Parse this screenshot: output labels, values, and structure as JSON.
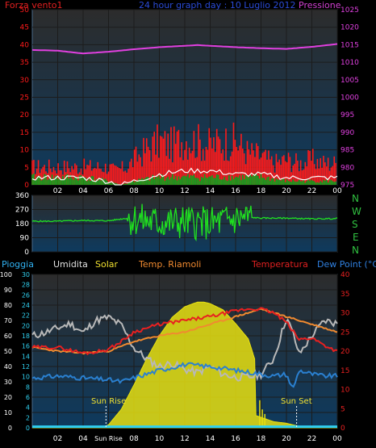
{
  "header": {
    "wind_label": "Forza vento1",
    "title": "24 hour graph day : 10 Luglio 2012",
    "pressure_label": "Pressione"
  },
  "direction": {
    "compass": [
      "N",
      "W",
      "S",
      "E",
      "N"
    ]
  },
  "climate": {
    "legend": {
      "rain": "Pioggia",
      "humidity": "Umidita",
      "solar": "Solar",
      "radiator": "Temp. Riamoli",
      "temperature": "Temperatura",
      "dewpoint": "Dew Point (°C)"
    },
    "sunrise_label": "Sun Rise",
    "sunset_label": "Sun Set"
  },
  "colors": {
    "wind_gust": "#ff1a1a",
    "wind_avg": "#ffffff",
    "wind_speed": "#1aa01a",
    "pressure": "#e040e0",
    "direction": "#20e020",
    "humidity": "#b8b8b8",
    "solar": "#e8e010",
    "radiator": "#f08a30",
    "temperature": "#e82020",
    "dewpoint": "#2a80d0",
    "rain": "#30d0f0",
    "axis_text": "#ffffff"
  },
  "chart_data": [
    {
      "type": "line",
      "panel": "wind_pressure",
      "x_ticks": [
        "02",
        "04",
        "06",
        "08",
        "10",
        "12",
        "14",
        "16",
        "18",
        "20",
        "22",
        "00"
      ],
      "y_left": {
        "range": [
          0,
          50
        ],
        "ticks": [
          0,
          5,
          10,
          15,
          20,
          25,
          30,
          35,
          40,
          45,
          50
        ]
      },
      "y_right": {
        "range": [
          975,
          1025
        ],
        "ticks": [
          975,
          980,
          985,
          990,
          995,
          1000,
          1005,
          1010,
          1015,
          1020,
          1025
        ]
      },
      "series": [
        {
          "name": "Pressione",
          "axis": "right",
          "x": [
            0,
            2,
            4,
            6,
            8,
            10,
            12,
            13,
            14,
            16,
            18,
            20,
            22,
            24
          ],
          "values": [
            1013.5,
            1013.3,
            1012.5,
            1013.0,
            1013.7,
            1014.3,
            1014.7,
            1014.9,
            1014.7,
            1014.3,
            1014.0,
            1013.8,
            1014.4,
            1015.2
          ]
        },
        {
          "name": "Forza vento1",
          "axis": "left",
          "style": "gust",
          "x": [
            0,
            2,
            4,
            6,
            6.5,
            7.5,
            8,
            9,
            10,
            11,
            12,
            13,
            14,
            15,
            16,
            17,
            18,
            19,
            20,
            21,
            22,
            23,
            24
          ],
          "values": [
            5,
            5,
            5,
            5,
            4,
            5,
            7,
            10,
            12,
            11,
            13,
            12,
            11,
            12,
            12,
            9,
            8,
            6,
            7,
            6,
            7,
            6,
            6
          ]
        },
        {
          "x": [
            0,
            2,
            4,
            6,
            7,
            8,
            10,
            12,
            14,
            16,
            18,
            20,
            22,
            24
          ],
          "values": [
            2,
            2,
            2,
            1,
            0,
            1,
            3,
            4,
            4,
            3,
            3,
            2,
            2,
            2
          ]
        },
        {
          "x": [
            0,
            2,
            4,
            6,
            7,
            8,
            10,
            12,
            14,
            16,
            18,
            20,
            22,
            24
          ],
          "values": [
            2,
            2,
            2,
            1,
            0,
            1,
            2,
            2,
            2,
            2,
            2,
            1,
            1,
            1
          ]
        }
      ]
    },
    {
      "type": "line",
      "panel": "wind_direction",
      "y_left": {
        "range": [
          0,
          360
        ],
        "ticks": [
          0,
          90,
          180,
          270,
          360
        ]
      },
      "series": [
        {
          "x": [
            0,
            2,
            4,
            6,
            7.5,
            8,
            10,
            12,
            14,
            16,
            17,
            18,
            20,
            22,
            24
          ],
          "values": [
            195,
            195,
            200,
            198,
            215,
            210,
            185,
            190,
            180,
            210,
            220,
            215,
            215,
            210,
            212
          ]
        }
      ]
    },
    {
      "type": "area",
      "panel": "climate",
      "x_ticks": [
        "02",
        "04",
        "Sun Rise",
        "08",
        "10",
        "12",
        "14",
        "16",
        "18",
        "20",
        "22",
        "00"
      ],
      "y_far_left": {
        "range": [
          0,
          100
        ],
        "ticks": [
          0,
          10,
          20,
          30,
          40,
          50,
          60,
          70,
          80,
          90,
          100
        ]
      },
      "y_left": {
        "range": [
          0,
          30
        ],
        "ticks": [
          0,
          2,
          4,
          6,
          8,
          10,
          12,
          14,
          16,
          18,
          20,
          22,
          24,
          26,
          28,
          30
        ]
      },
      "y_right": {
        "range": [
          0,
          40
        ],
        "ticks": [
          0,
          5,
          10,
          15,
          20,
          25,
          30,
          35,
          40
        ]
      },
      "series": [
        {
          "name": "Umidita",
          "axis": "far_left",
          "x": [
            0,
            1,
            2,
            3,
            4,
            5,
            6,
            7,
            8,
            9,
            10,
            11,
            12,
            13,
            14,
            15,
            16,
            17,
            18,
            19,
            20,
            20.5,
            21,
            22,
            23,
            24
          ],
          "values": [
            60,
            62,
            65,
            68,
            62,
            70,
            72,
            67,
            52,
            45,
            40,
            42,
            38,
            36,
            40,
            35,
            33,
            33,
            35,
            45,
            72,
            62,
            48,
            60,
            70,
            68
          ]
        },
        {
          "name": "Solar",
          "axis": "far_left",
          "x": [
            0,
            5.5,
            6,
            7,
            8,
            9,
            10,
            11,
            12,
            13,
            13.5,
            14,
            15,
            16,
            17,
            17.5,
            17.6,
            19,
            20,
            21,
            24
          ],
          "values": [
            0,
            0,
            2,
            12,
            28,
            45,
            60,
            72,
            79,
            82,
            82,
            81,
            77,
            68,
            58,
            45,
            8,
            4,
            3,
            1,
            0
          ]
        },
        {
          "name": "Temp. Riamoli",
          "axis": "right",
          "x": [
            0,
            2,
            4,
            6,
            8,
            10,
            12,
            14,
            16,
            18,
            20,
            22,
            23,
            24
          ],
          "values": [
            21,
            20,
            19.5,
            20,
            22.5,
            24,
            25,
            27,
            29,
            31,
            29,
            27,
            26,
            25
          ]
        },
        {
          "name": "Temperatura",
          "axis": "right",
          "x": [
            0,
            2,
            4,
            5,
            6,
            7,
            8,
            10,
            12,
            14,
            16,
            17,
            18,
            19,
            20,
            21,
            22,
            23,
            24
          ],
          "values": [
            21,
            21,
            19.5,
            19.8,
            20.5,
            22.5,
            25,
            27,
            28,
            29,
            30.5,
            31,
            31,
            30,
            27.5,
            23,
            23.5,
            21.5,
            20
          ]
        },
        {
          "name": "Dew Point (°C)",
          "axis": "right",
          "x": [
            0,
            2,
            4,
            6,
            7,
            8,
            10,
            12,
            14,
            16,
            18,
            19,
            20,
            20.5,
            21,
            22,
            23,
            24
          ],
          "values": [
            13,
            13.5,
            13,
            12.5,
            12,
            13,
            15,
            16.5,
            16,
            15,
            14,
            13.5,
            14,
            10,
            15,
            14,
            13.5,
            13.5
          ]
        },
        {
          "name": "Pioggia",
          "axis": "left",
          "x": [
            0,
            24
          ],
          "values": [
            0.3,
            0.3
          ]
        }
      ],
      "annotations": [
        {
          "label": "Sun Rise",
          "x": 5.8
        },
        {
          "label": "Sun Set",
          "x": 20.8
        }
      ]
    }
  ]
}
